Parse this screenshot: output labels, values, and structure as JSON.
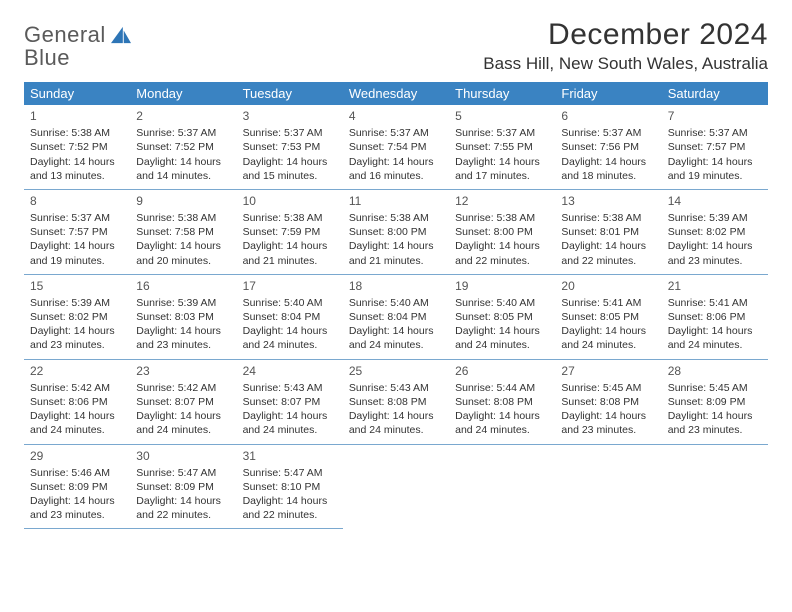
{
  "brand": {
    "word1": "General",
    "word2": "Blue"
  },
  "title": "December 2024",
  "location": "Bass Hill, New South Wales, Australia",
  "day_headers": [
    "Sunday",
    "Monday",
    "Tuesday",
    "Wednesday",
    "Thursday",
    "Friday",
    "Saturday"
  ],
  "colors": {
    "header_bg": "#3a83c2",
    "header_text": "#ffffff",
    "rule": "#7aa8cf",
    "brand_blue": "#2d75b6",
    "text": "#333333"
  },
  "days": [
    {
      "n": "1",
      "sr": "5:38 AM",
      "ss": "7:52 PM",
      "dl": "14 hours and 13 minutes."
    },
    {
      "n": "2",
      "sr": "5:37 AM",
      "ss": "7:52 PM",
      "dl": "14 hours and 14 minutes."
    },
    {
      "n": "3",
      "sr": "5:37 AM",
      "ss": "7:53 PM",
      "dl": "14 hours and 15 minutes."
    },
    {
      "n": "4",
      "sr": "5:37 AM",
      "ss": "7:54 PM",
      "dl": "14 hours and 16 minutes."
    },
    {
      "n": "5",
      "sr": "5:37 AM",
      "ss": "7:55 PM",
      "dl": "14 hours and 17 minutes."
    },
    {
      "n": "6",
      "sr": "5:37 AM",
      "ss": "7:56 PM",
      "dl": "14 hours and 18 minutes."
    },
    {
      "n": "7",
      "sr": "5:37 AM",
      "ss": "7:57 PM",
      "dl": "14 hours and 19 minutes."
    },
    {
      "n": "8",
      "sr": "5:37 AM",
      "ss": "7:57 PM",
      "dl": "14 hours and 19 minutes."
    },
    {
      "n": "9",
      "sr": "5:38 AM",
      "ss": "7:58 PM",
      "dl": "14 hours and 20 minutes."
    },
    {
      "n": "10",
      "sr": "5:38 AM",
      "ss": "7:59 PM",
      "dl": "14 hours and 21 minutes."
    },
    {
      "n": "11",
      "sr": "5:38 AM",
      "ss": "8:00 PM",
      "dl": "14 hours and 21 minutes."
    },
    {
      "n": "12",
      "sr": "5:38 AM",
      "ss": "8:00 PM",
      "dl": "14 hours and 22 minutes."
    },
    {
      "n": "13",
      "sr": "5:38 AM",
      "ss": "8:01 PM",
      "dl": "14 hours and 22 minutes."
    },
    {
      "n": "14",
      "sr": "5:39 AM",
      "ss": "8:02 PM",
      "dl": "14 hours and 23 minutes."
    },
    {
      "n": "15",
      "sr": "5:39 AM",
      "ss": "8:02 PM",
      "dl": "14 hours and 23 minutes."
    },
    {
      "n": "16",
      "sr": "5:39 AM",
      "ss": "8:03 PM",
      "dl": "14 hours and 23 minutes."
    },
    {
      "n": "17",
      "sr": "5:40 AM",
      "ss": "8:04 PM",
      "dl": "14 hours and 24 minutes."
    },
    {
      "n": "18",
      "sr": "5:40 AM",
      "ss": "8:04 PM",
      "dl": "14 hours and 24 minutes."
    },
    {
      "n": "19",
      "sr": "5:40 AM",
      "ss": "8:05 PM",
      "dl": "14 hours and 24 minutes."
    },
    {
      "n": "20",
      "sr": "5:41 AM",
      "ss": "8:05 PM",
      "dl": "14 hours and 24 minutes."
    },
    {
      "n": "21",
      "sr": "5:41 AM",
      "ss": "8:06 PM",
      "dl": "14 hours and 24 minutes."
    },
    {
      "n": "22",
      "sr": "5:42 AM",
      "ss": "8:06 PM",
      "dl": "14 hours and 24 minutes."
    },
    {
      "n": "23",
      "sr": "5:42 AM",
      "ss": "8:07 PM",
      "dl": "14 hours and 24 minutes."
    },
    {
      "n": "24",
      "sr": "5:43 AM",
      "ss": "8:07 PM",
      "dl": "14 hours and 24 minutes."
    },
    {
      "n": "25",
      "sr": "5:43 AM",
      "ss": "8:08 PM",
      "dl": "14 hours and 24 minutes."
    },
    {
      "n": "26",
      "sr": "5:44 AM",
      "ss": "8:08 PM",
      "dl": "14 hours and 24 minutes."
    },
    {
      "n": "27",
      "sr": "5:45 AM",
      "ss": "8:08 PM",
      "dl": "14 hours and 23 minutes."
    },
    {
      "n": "28",
      "sr": "5:45 AM",
      "ss": "8:09 PM",
      "dl": "14 hours and 23 minutes."
    },
    {
      "n": "29",
      "sr": "5:46 AM",
      "ss": "8:09 PM",
      "dl": "14 hours and 23 minutes."
    },
    {
      "n": "30",
      "sr": "5:47 AM",
      "ss": "8:09 PM",
      "dl": "14 hours and 22 minutes."
    },
    {
      "n": "31",
      "sr": "5:47 AM",
      "ss": "8:10 PM",
      "dl": "14 hours and 22 minutes."
    }
  ],
  "labels": {
    "sunrise": "Sunrise: ",
    "sunset": "Sunset: ",
    "daylight": "Daylight: "
  }
}
